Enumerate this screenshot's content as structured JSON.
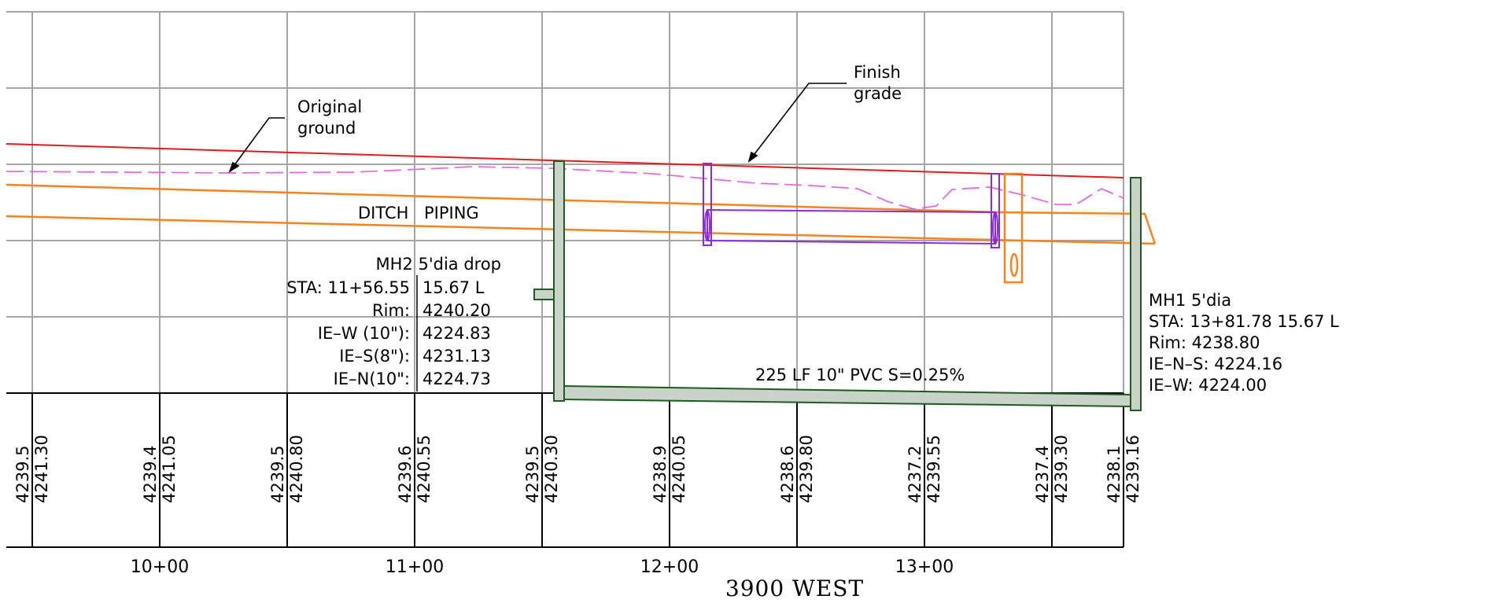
{
  "labels": {
    "original_ground": [
      "Original",
      "ground"
    ],
    "finish_grade": [
      "Finish",
      "grade"
    ],
    "ditch": "DITCH",
    "piping": "PIPING",
    "pipe_run": "225  LF  10\"  PVC  S=0.25%",
    "street": "3900  WEST"
  },
  "mh2": {
    "title": "MH2  5'dia  drop",
    "rows": [
      {
        "key": "STA:  11+56.55",
        "value": "15.67  L"
      },
      {
        "key": "Rim:",
        "value": "4240.20"
      },
      {
        "key": "IE–W  (10\"):",
        "value": "4224.83"
      },
      {
        "key": "IE–S(8\"):",
        "value": "4231.13"
      },
      {
        "key": "IE–N(10\":",
        "value": "4224.73"
      }
    ]
  },
  "mh1": {
    "lines": [
      "MH1  5'dia",
      "STA:  13+81.78  15.67  L",
      "Rim:  4238.80",
      "IE–N–S:  4224.16",
      "IE–W:  4224.00"
    ]
  },
  "elevations": [
    {
      "a": "4239.5",
      "b": "4241.30"
    },
    {
      "a": "4239.4",
      "b": "4241.05"
    },
    {
      "a": "4239.5",
      "b": "4240.80"
    },
    {
      "a": "4239.6",
      "b": "4240.55"
    },
    {
      "a": "4239.5",
      "b": "4240.30"
    },
    {
      "a": "4238.9",
      "b": "4240.05"
    },
    {
      "a": "4238.6",
      "b": "4239.80"
    },
    {
      "a": "4237.2",
      "b": "4239.55"
    },
    {
      "a": "4237.4",
      "b": "4239.30"
    },
    {
      "a": "4238.1",
      "b": "4239.16"
    }
  ],
  "stations": [
    "10+00",
    "11+00",
    "12+00",
    "13+00"
  ],
  "colors": {
    "grid": "#a6a6a6",
    "finish_grade": "#e31a1a",
    "original_ground": "#e36be3",
    "ditch": "#f5841f",
    "piping": "#8a2be2",
    "manhole_fill": "#c9d3c9",
    "manhole_stroke": "#1f5c1f"
  }
}
